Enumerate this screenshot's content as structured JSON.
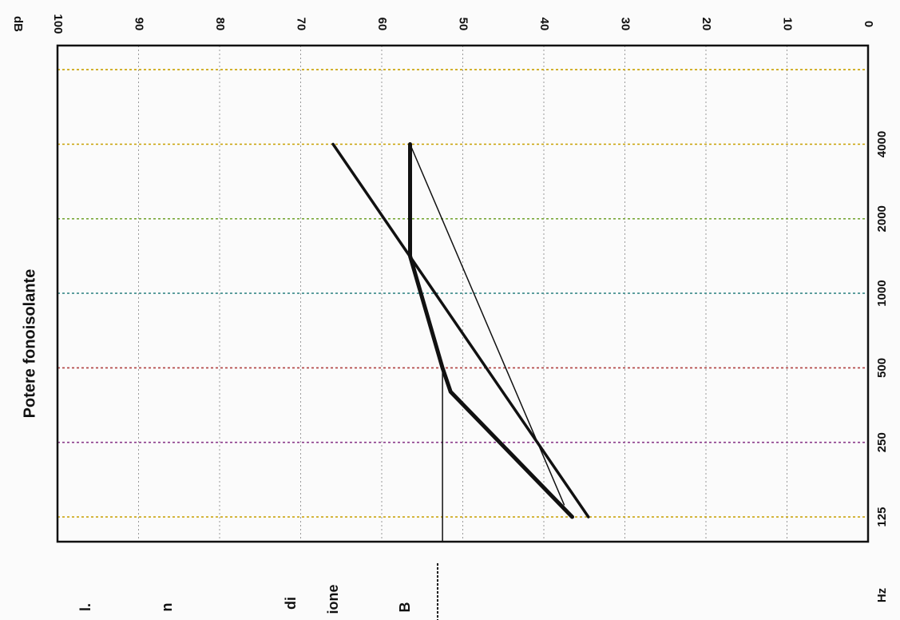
{
  "chart_data": {
    "type": "line",
    "title": "Potere fonoisolante",
    "ylabel": "dB",
    "xlabel": "Hz",
    "y_ticks": [
      "100",
      "90",
      "80",
      "70",
      "60",
      "50",
      "40",
      "30",
      "20",
      "10",
      "0"
    ],
    "ylim": [
      0,
      100
    ],
    "x_ticks": [
      "125",
      "250",
      "500",
      "1000",
      "2000",
      "4000"
    ],
    "x_scale": "log2",
    "grid": true,
    "grid_colors": [
      "#c8a000",
      "#8a3a8a",
      "#b04040",
      "#3a8a8a",
      "#7aa83a",
      "#c8a000"
    ],
    "side_labels": [
      "l.",
      "n",
      "di",
      "ione",
      "B"
    ],
    "series": [
      {
        "style": "thick",
        "x": [
          125,
          400,
          500,
          1414,
          1414,
          4000
        ],
        "y": [
          36.5,
          51.5,
          52.5,
          56.5,
          56.5,
          56.5
        ]
      },
      {
        "style": "medium",
        "x": [
          125,
          4000
        ],
        "y": [
          34.5,
          66
        ]
      },
      {
        "style": "thin",
        "x": [
          140,
          4000
        ],
        "y": [
          37.5,
          56.5
        ]
      },
      {
        "style": "vertical",
        "x": [
          125,
          500
        ],
        "y": [
          52.5,
          52.5
        ]
      }
    ]
  }
}
